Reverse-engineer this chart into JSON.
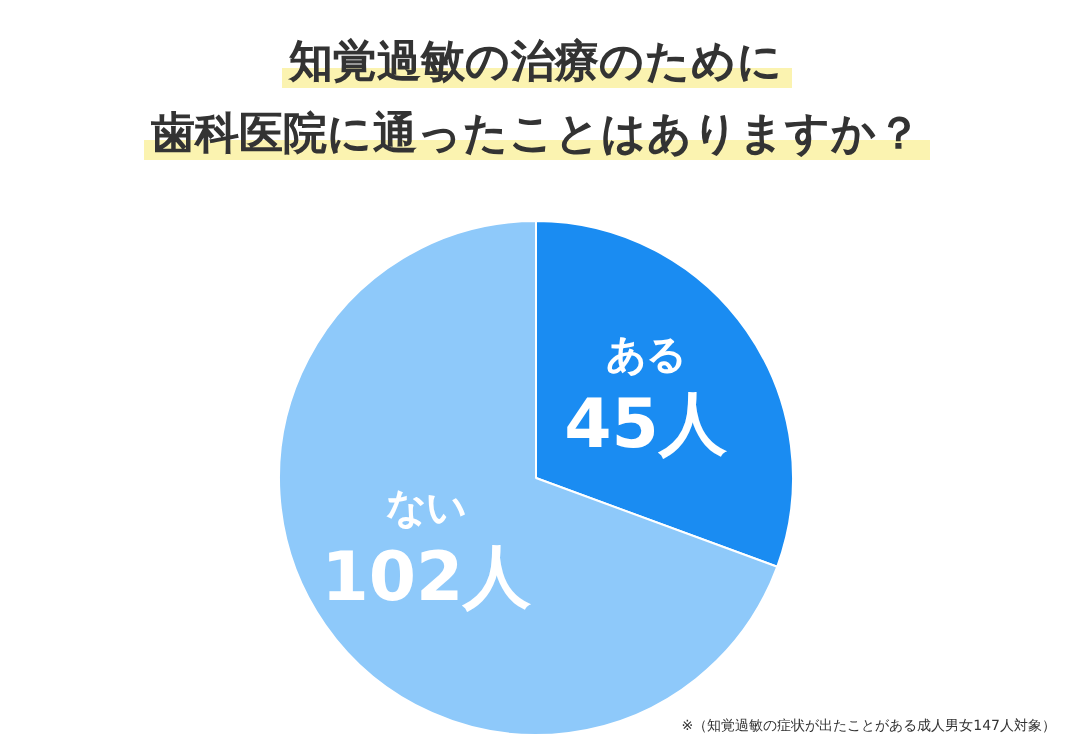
{
  "chart_data": {
    "type": "pie",
    "title": "知覚過敏の治療のために",
    "subtitle": "歯科医院に通ったことはありますか？",
    "categories": [
      "ある",
      "ない"
    ],
    "values": [
      45,
      102
    ],
    "colors": [
      "#1a8cf2",
      "#8ec9fa"
    ],
    "value_labels": [
      "45人",
      "102人"
    ],
    "legend": false,
    "annotations": [
      "※（知覚過敏の症状が出たことがある成人男女147人対象）"
    ]
  }
}
